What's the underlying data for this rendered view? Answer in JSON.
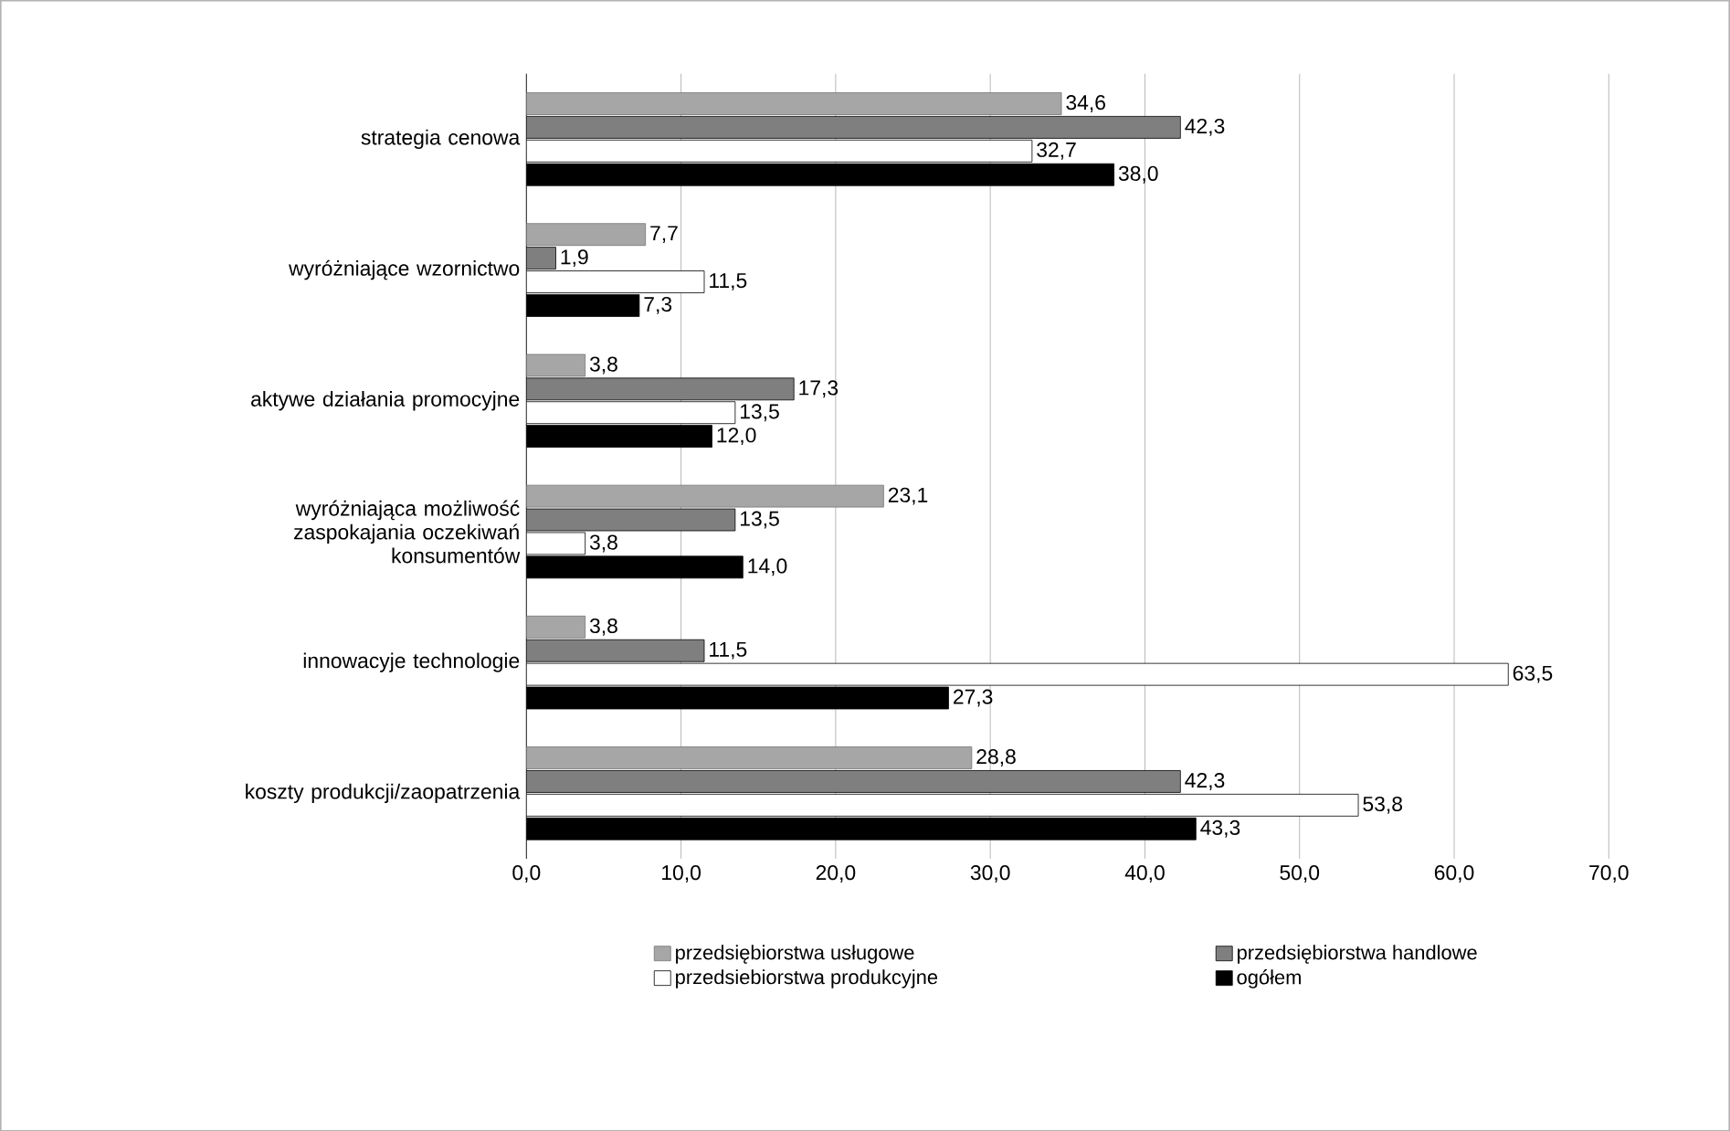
{
  "chart_data": {
    "type": "bar",
    "orientation": "horizontal",
    "categories": [
      "strategia cenowa",
      "wyróżniające wzornictwo",
      "aktywe działania promocyjne",
      "wyróżniająca możliwość zaspokajania oczekiwań konsumentów",
      "innowacyje technologie",
      "koszty produkcji/zaopatrzenia"
    ],
    "series": [
      {
        "name": "przedsiębiorstwa usługowe",
        "color": "#a6a6a6",
        "values": [
          34.6,
          7.7,
          3.8,
          23.1,
          3.8,
          28.8
        ],
        "value_labels": [
          "34,6",
          "7,7",
          "3,8",
          "23,1",
          "3,8",
          "28,8"
        ]
      },
      {
        "name": "przedsiębiorstwa handlowe",
        "color": "#7f7f7f",
        "values": [
          42.3,
          1.9,
          17.3,
          13.5,
          11.5,
          42.3
        ],
        "value_labels": [
          "42,3",
          "1,9",
          "17,3",
          "13,5",
          "11,5",
          "42,3"
        ]
      },
      {
        "name": "przedsiebiorstwa produkcyjne",
        "color": "#ffffff",
        "values": [
          32.7,
          11.5,
          13.5,
          3.8,
          63.5,
          53.8
        ],
        "value_labels": [
          "32,7",
          "11,5",
          "13,5",
          "3,8",
          "63,5",
          "53,8"
        ]
      },
      {
        "name": "ogółem",
        "color": "#000000",
        "values": [
          38.0,
          7.3,
          12.0,
          14.0,
          27.3,
          43.3
        ],
        "value_labels": [
          "38,0",
          "7,3",
          "12,0",
          "14,0",
          "27,3",
          "43,3"
        ]
      }
    ],
    "xlim": [
      0,
      70
    ],
    "xticks": [
      {
        "value": 0,
        "label": "0,0"
      },
      {
        "value": 10,
        "label": "10,0"
      },
      {
        "value": 20,
        "label": "20,0"
      },
      {
        "value": 30,
        "label": "30,0"
      },
      {
        "value": 40,
        "label": "40,0"
      },
      {
        "value": 50,
        "label": "50,0"
      },
      {
        "value": 60,
        "label": "60,0"
      },
      {
        "value": 70,
        "label": "70,0"
      }
    ],
    "grid": "x",
    "legend": "bottom"
  }
}
